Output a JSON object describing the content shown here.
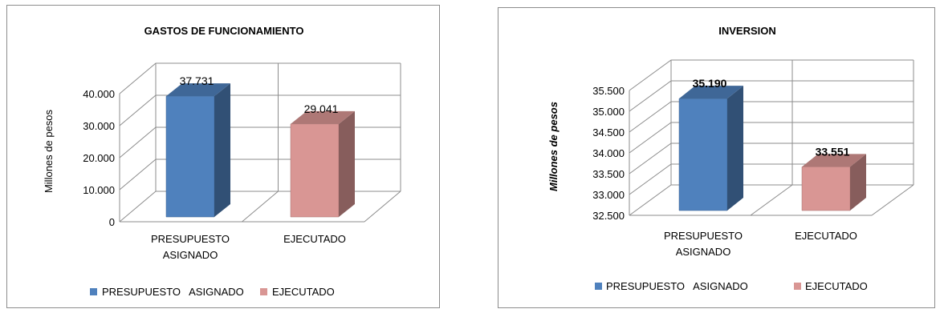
{
  "chart_data": [
    {
      "type": "bar",
      "title": "GASTOS DE FUNCIONAMIENTO",
      "ylabel": "Millones de pesos",
      "xlabel": "",
      "categories": [
        "PRESUPUESTO ASIGNADO",
        "EJECUTADO"
      ],
      "category_lines": [
        [
          "PRESUPUESTO",
          "ASIGNADO"
        ],
        [
          "EJECUTADO"
        ]
      ],
      "values": [
        37731,
        29041
      ],
      "data_labels": [
        "37.731",
        "29.041"
      ],
      "colors": [
        "#4f81bd",
        "#d99694"
      ],
      "ylim": [
        0,
        40000
      ],
      "yticks": [
        0,
        10000,
        20000,
        30000,
        40000
      ],
      "ytick_labels": [
        "0",
        "10.000",
        "20.000",
        "30.000",
        "40.000"
      ],
      "grid": true,
      "legend": {
        "placement": "bottom",
        "entries": [
          "PRESUPUESTO   ASIGNADO",
          "EJECUTADO"
        ]
      }
    },
    {
      "type": "bar",
      "title": "INVERSION",
      "ylabel": "Millones de pesos",
      "xlabel": "",
      "categories": [
        "PRESUPUESTO ASIGNADO",
        "EJECUTADO"
      ],
      "category_lines": [
        [
          "PRESUPUESTO",
          "ASIGNADO"
        ],
        [
          "EJECUTADO"
        ]
      ],
      "values": [
        35190,
        33551
      ],
      "data_labels": [
        "35.190",
        "33.551"
      ],
      "colors": [
        "#4f81bd",
        "#d99694"
      ],
      "ylim": [
        32500,
        35500
      ],
      "yticks": [
        32500,
        33000,
        33500,
        34000,
        34500,
        35000,
        35500
      ],
      "ytick_labels": [
        "32.500",
        "33.000",
        "33.500",
        "34.000",
        "34.500",
        "35.000",
        "35.500"
      ],
      "grid": true,
      "legend": {
        "placement": "bottom",
        "entries": [
          "PRESUPUESTO   ASIGNADO",
          "EJECUTADO"
        ]
      }
    }
  ]
}
